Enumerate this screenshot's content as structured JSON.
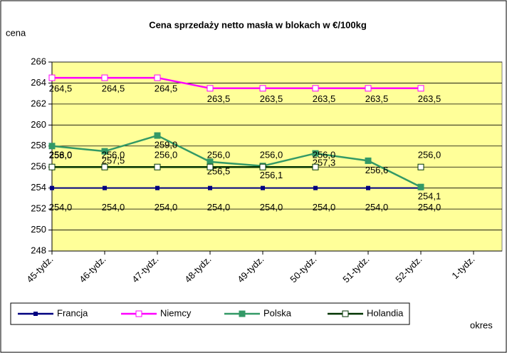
{
  "chart_data": {
    "type": "line",
    "title": "Cena sprzedaży netto masła w blokach w €/100kg",
    "y_label": "cena",
    "x_label": "okres",
    "categories": [
      "45-tydz.",
      "46-tydz.",
      "47-tydz.",
      "48-tydz.",
      "49-tydz.",
      "50-tydz.",
      "51-tydz.",
      "52-tydz.",
      "1-tydz."
    ],
    "ylim": [
      248,
      266
    ],
    "yticks": [
      248,
      250,
      252,
      254,
      256,
      258,
      260,
      262,
      264,
      266
    ],
    "grid": true,
    "series": [
      {
        "name": "Francja",
        "color": "#000080",
        "values": [
          254.0,
          254.0,
          254.0,
          254.0,
          254.0,
          254.0,
          254.0,
          254.0,
          null
        ],
        "value_labels": [
          "254,0",
          "254,0",
          "254,0",
          "254,0",
          "254,0",
          "254,0",
          "254,0",
          "254,0",
          null
        ]
      },
      {
        "name": "Niemcy",
        "color": "#ff00ff",
        "values": [
          264.5,
          264.5,
          264.5,
          263.5,
          263.5,
          263.5,
          263.5,
          263.5,
          null
        ],
        "value_labels": [
          "264,5",
          "264,5",
          "264,5",
          "263,5",
          "263,5",
          "263,5",
          "263,5",
          "263,5",
          null
        ]
      },
      {
        "name": "Polska",
        "color": "#339966",
        "values": [
          258.0,
          257.5,
          259.0,
          256.5,
          256.1,
          257.3,
          256.6,
          254.1,
          null
        ],
        "value_labels": [
          "258,0",
          "257,5",
          "259,0",
          "256,5",
          "256,1",
          "257,3",
          "256,6",
          "254,1",
          null
        ]
      },
      {
        "name": "Holandia",
        "color": "#003300",
        "values": [
          256.0,
          256.0,
          256.0,
          256.0,
          256.0,
          256.0,
          null,
          256.0,
          null
        ],
        "value_labels": [
          "256,0",
          "256,0",
          "256,0",
          "256,0",
          "256,0",
          "256,0",
          null,
          "256,0",
          null
        ]
      }
    ]
  }
}
